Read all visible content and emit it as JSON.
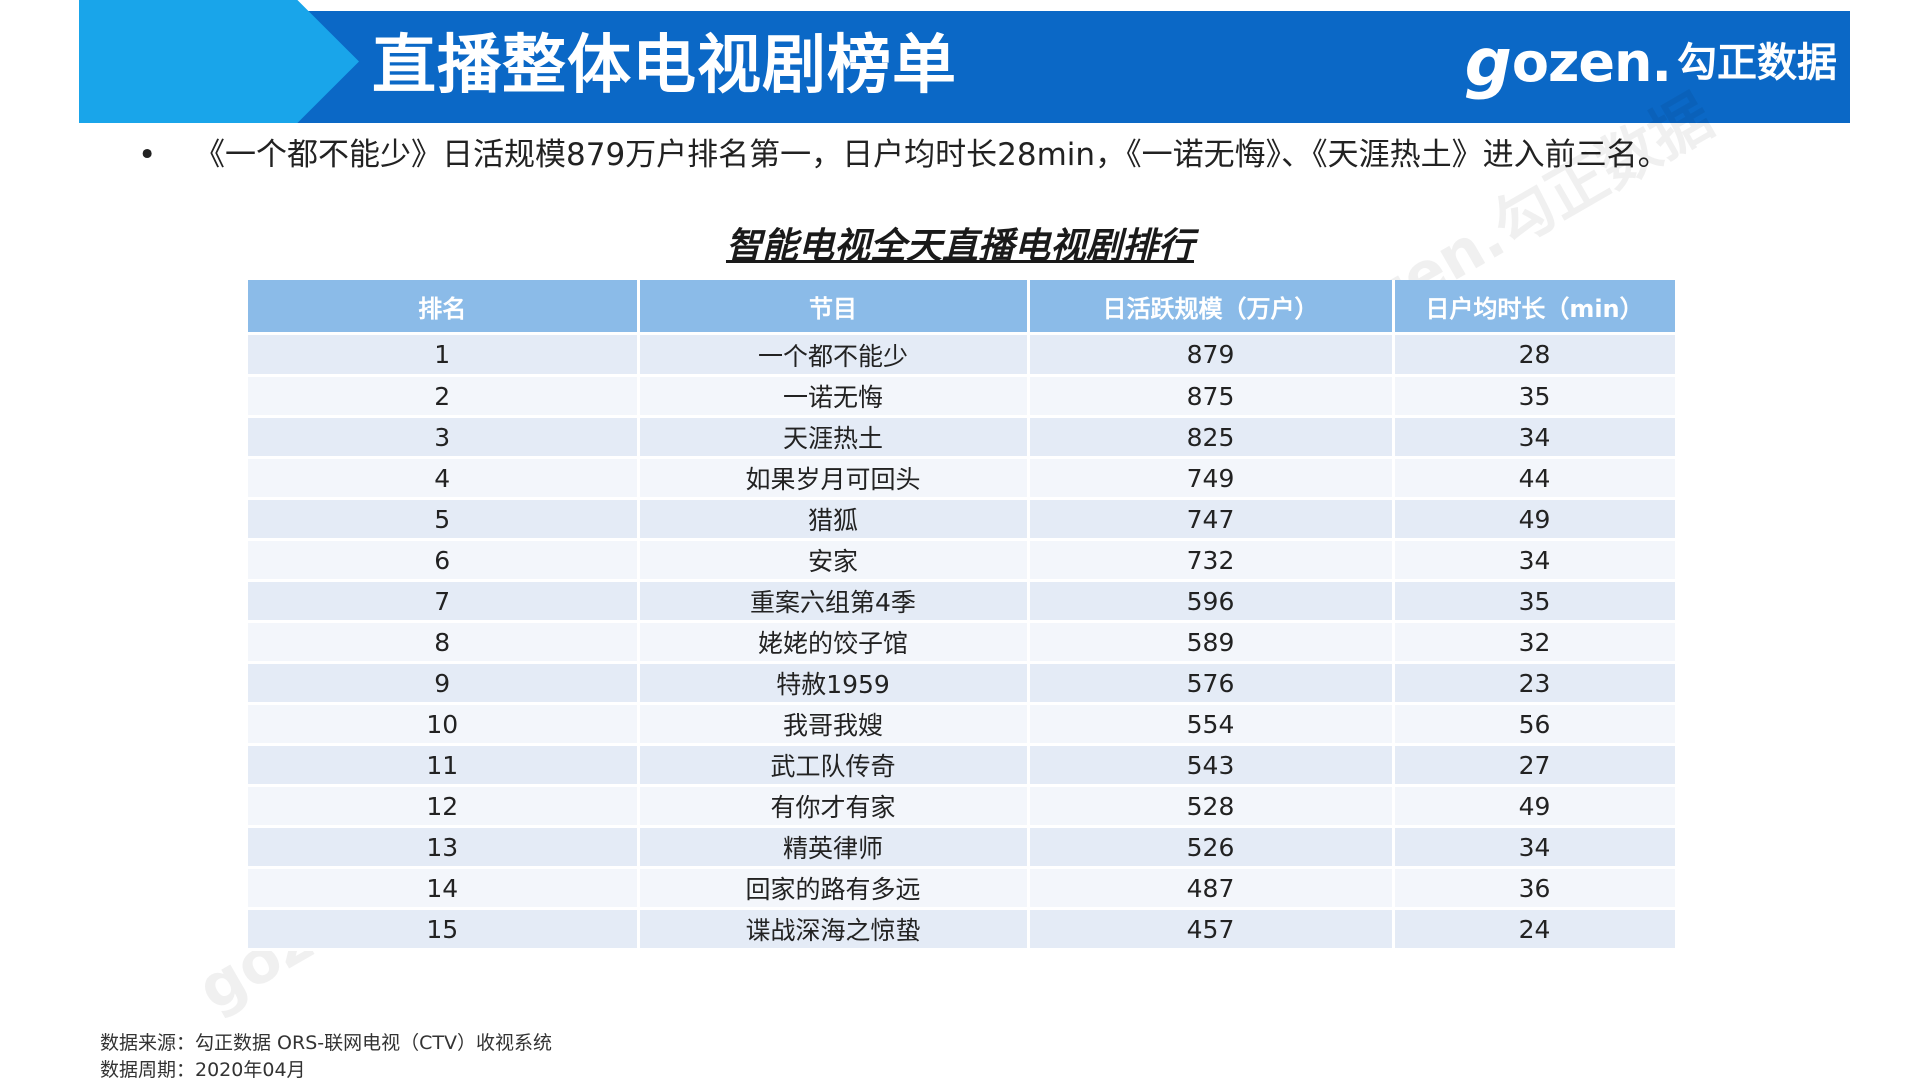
{
  "header": {
    "title": "直播整体电视剧榜单",
    "logo_g": "g",
    "logo_text": "ozen.",
    "logo_cn": "勾正数据"
  },
  "bullet": {
    "symbol": "•",
    "text": "《一个都不能少》日活规模879万户排名第一，日户均时长28min，《一诺无悔》、《天涯热土》进入前三名。"
  },
  "table": {
    "title": "智能电视全天直播电视剧排行",
    "headers": [
      "排名",
      "节目",
      "日活跃规模（万户）",
      "日户均时长（min）"
    ],
    "rows": [
      [
        "1",
        "一个都不能少",
        "879",
        "28"
      ],
      [
        "2",
        "一诺无悔",
        "875",
        "35"
      ],
      [
        "3",
        "天涯热土",
        "825",
        "34"
      ],
      [
        "4",
        "如果岁月可回头",
        "749",
        "44"
      ],
      [
        "5",
        "猎狐",
        "747",
        "49"
      ],
      [
        "6",
        "安家",
        "732",
        "34"
      ],
      [
        "7",
        "重案六组第4季",
        "596",
        "35"
      ],
      [
        "8",
        "姥姥的饺子馆",
        "589",
        "32"
      ],
      [
        "9",
        "特赦1959",
        "576",
        "23"
      ],
      [
        "10",
        "我哥我嫂",
        "554",
        "56"
      ],
      [
        "11",
        "武工队传奇",
        "543",
        "27"
      ],
      [
        "12",
        "有你才有家",
        "528",
        "49"
      ],
      [
        "13",
        "精英律师",
        "526",
        "34"
      ],
      [
        "14",
        "回家的路有多远",
        "487",
        "36"
      ],
      [
        "15",
        "谍战深海之惊蛰",
        "457",
        "24"
      ]
    ]
  },
  "watermark": {
    "text": "gozen.勾正数据"
  },
  "footer": {
    "source": "数据来源：勾正数据 ORS-联网电视（CTV）收视系统",
    "period": "数据周期：2020年04月"
  },
  "colors": {
    "header_bar": "#0b68c6",
    "header_arrow": "#19a5ea",
    "table_header": "#8bbbe8",
    "row_odd": "#e4ebf6",
    "row_even": "#f3f6fb"
  }
}
